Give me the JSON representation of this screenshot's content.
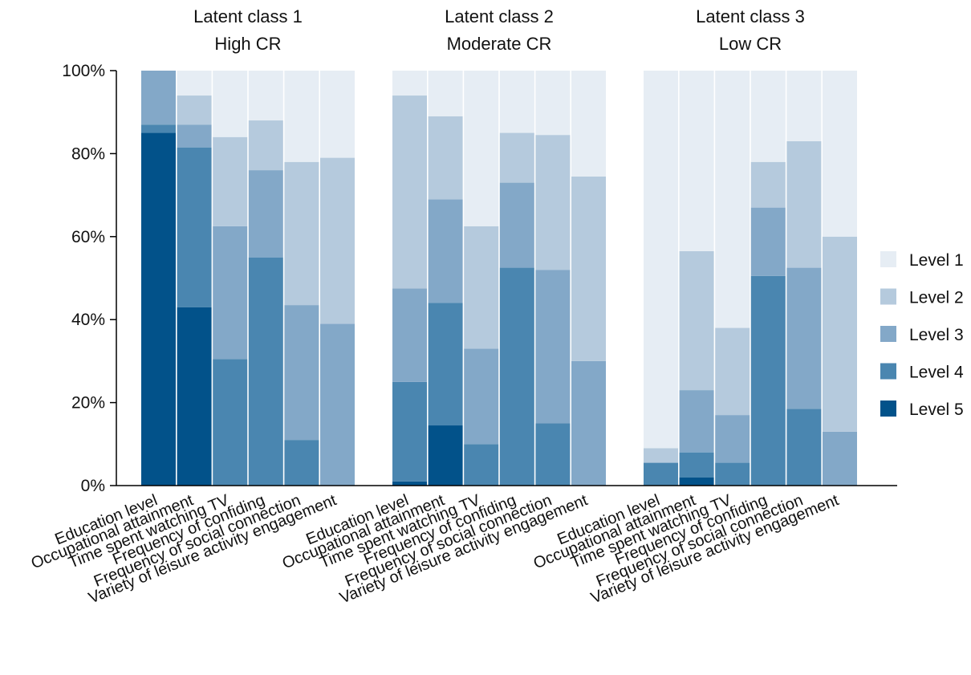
{
  "chart_data": {
    "type": "bar",
    "stacked": true,
    "ylim": [
      0,
      100
    ],
    "y_ticks": [
      "0%",
      "20%",
      "40%",
      "60%",
      "80%",
      "100%"
    ],
    "y_tick_values": [
      0,
      20,
      40,
      60,
      80,
      100
    ],
    "grid": false,
    "legend_position": "right",
    "legend": [
      {
        "name": "Level 1",
        "color": "#e6edf4"
      },
      {
        "name": "Level 2",
        "color": "#b5cadd"
      },
      {
        "name": "Level 3",
        "color": "#83a8c8"
      },
      {
        "name": "Level 4",
        "color": "#4a86b0"
      },
      {
        "name": "Level 5",
        "color": "#02528a"
      }
    ],
    "categories": [
      "Education level",
      "Occupational attainment",
      "Time spent watching TV",
      "Frequency of confiding",
      "Frequency of social connection",
      "Variety of leisure activity engagement"
    ],
    "groups": [
      {
        "title_line1": "Latent class 1",
        "title_line2": "High CR",
        "bars": [
          {
            "level5": 85,
            "level4": 2,
            "level3": 13,
            "level2": 0,
            "level1": 0
          },
          {
            "level5": 43,
            "level4": 38.5,
            "level3": 5.5,
            "level2": 7,
            "level1": 6
          },
          {
            "level5": 0,
            "level4": 30.5,
            "level3": 32,
            "level2": 21.5,
            "level1": 16
          },
          {
            "level5": 0,
            "level4": 55,
            "level3": 21,
            "level2": 12,
            "level1": 12
          },
          {
            "level5": 0,
            "level4": 11,
            "level3": 32.5,
            "level2": 34.5,
            "level1": 22
          },
          {
            "level5": 0,
            "level4": 0,
            "level3": 39,
            "level2": 40,
            "level1": 21
          }
        ]
      },
      {
        "title_line1": "Latent class 2",
        "title_line2": "Moderate CR",
        "bars": [
          {
            "level5": 1,
            "level4": 24,
            "level3": 22.5,
            "level2": 46.5,
            "level1": 6
          },
          {
            "level5": 14.5,
            "level4": 29.5,
            "level3": 25,
            "level2": 20,
            "level1": 11
          },
          {
            "level5": 0,
            "level4": 10,
            "level3": 23,
            "level2": 29.5,
            "level1": 37.5
          },
          {
            "level5": 0,
            "level4": 52.5,
            "level3": 20.5,
            "level2": 12,
            "level1": 15
          },
          {
            "level5": 0,
            "level4": 15,
            "level3": 37,
            "level2": 32.5,
            "level1": 15.5
          },
          {
            "level5": 0,
            "level4": 0,
            "level3": 30,
            "level2": 44.5,
            "level1": 25.5
          }
        ]
      },
      {
        "title_line1": "Latent class 3",
        "title_line2": "Low CR",
        "bars": [
          {
            "level5": 0,
            "level4": 5.5,
            "level3": 0,
            "level2": 3.5,
            "level1": 91
          },
          {
            "level5": 2,
            "level4": 6,
            "level3": 15,
            "level2": 33.5,
            "level1": 43.5
          },
          {
            "level5": 0,
            "level4": 5.5,
            "level3": 11.5,
            "level2": 21,
            "level1": 62
          },
          {
            "level5": 0,
            "level4": 50.5,
            "level3": 16.5,
            "level2": 11,
            "level1": 22
          },
          {
            "level5": 0,
            "level4": 18.5,
            "level3": 34,
            "level2": 30.5,
            "level1": 17
          },
          {
            "level5": 0,
            "level4": 0,
            "level3": 13,
            "level2": 47,
            "level1": 40
          }
        ]
      }
    ]
  }
}
